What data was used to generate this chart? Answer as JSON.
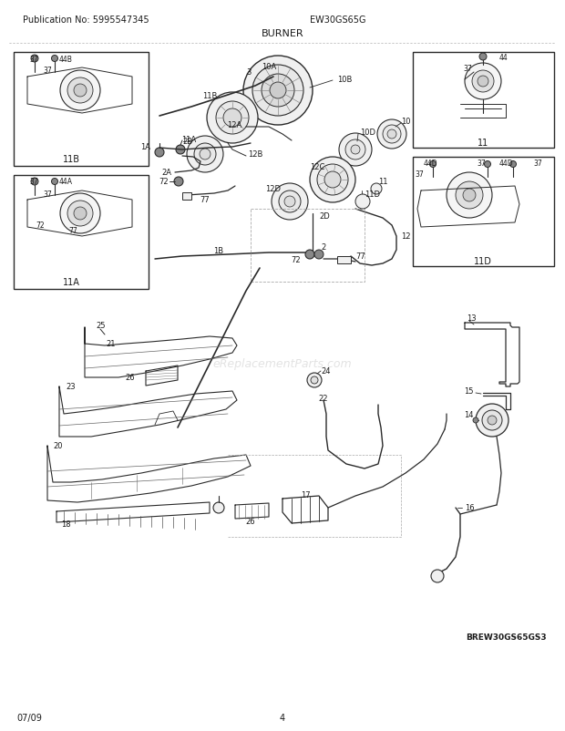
{
  "title": "BURNER",
  "pub_no": "Publication No: 5995547345",
  "model": "EW30GS65G",
  "date": "07/09",
  "page": "4",
  "diagram_id": "BREW30GS65GS3",
  "watermark": "eReplacementParts.com",
  "bg_color": "#ffffff",
  "text_color": "#1a1a1a",
  "line_color": "#2a2a2a",
  "gray": "#888888",
  "lightgray": "#cccccc"
}
